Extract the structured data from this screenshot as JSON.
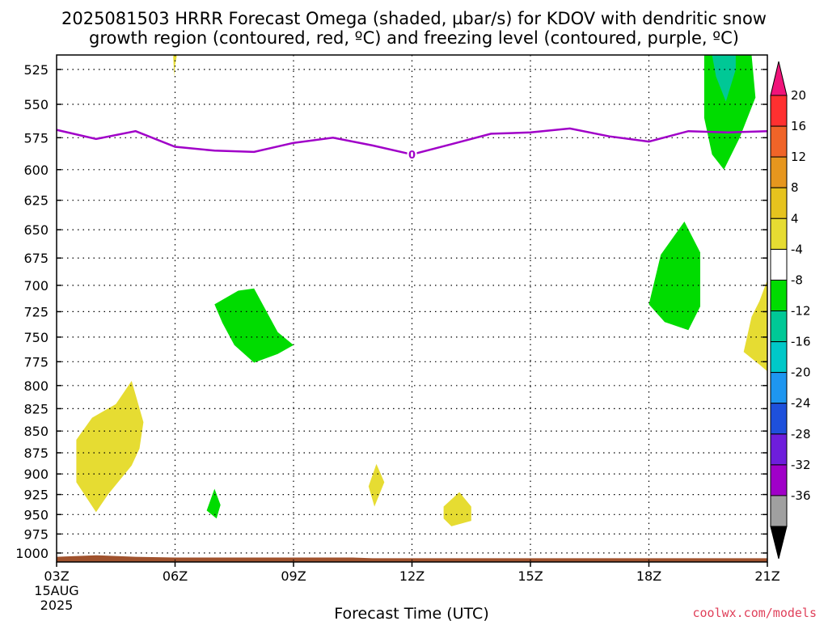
{
  "header": {
    "title_line1": "2025081503 HRRR Forecast Omega (shaded, µbar/s) for KDOV with dendritic snow",
    "title_line2": "growth region (contoured, red, ºC) and freezing level (contoured, purple, ºC)"
  },
  "footer": {
    "xlabel": "Forecast Time (UTC)",
    "credit": "coolwx.com/models"
  },
  "chart_data": {
    "type": "area",
    "title": "2025081503 HRRR Forecast Omega (shaded, µbar/s) for KDOV with dendritic snow growth region (contoured, red, ºC) and freezing level (contoured, purple, ºC)",
    "xlabel": "Forecast Time (UTC)",
    "ylabel": "",
    "x_ticks": [
      {
        "value": 3,
        "label": "03Z",
        "sub1": "15AUG",
        "sub2": "2025"
      },
      {
        "value": 6,
        "label": "06Z"
      },
      {
        "value": 9,
        "label": "09Z"
      },
      {
        "value": 12,
        "label": "12Z"
      },
      {
        "value": 15,
        "label": "15Z"
      },
      {
        "value": 18,
        "label": "18Z"
      },
      {
        "value": 21,
        "label": "21Z"
      }
    ],
    "xlim": [
      3,
      21
    ],
    "y_ticks": [
      525,
      550,
      575,
      600,
      625,
      650,
      675,
      700,
      725,
      750,
      775,
      800,
      825,
      850,
      875,
      900,
      925,
      950,
      975,
      1000
    ],
    "ylim": [
      515,
      1012
    ],
    "y_scale": "log-pressure",
    "grid": true,
    "freezing_level": {
      "label": "0",
      "color": "#a000c8",
      "points": [
        [
          3,
          569
        ],
        [
          4,
          576
        ],
        [
          5,
          570
        ],
        [
          6,
          582
        ],
        [
          7,
          585
        ],
        [
          8,
          586
        ],
        [
          9,
          579
        ],
        [
          10,
          575
        ],
        [
          11,
          581
        ],
        [
          12,
          588
        ],
        [
          13,
          580
        ],
        [
          14,
          572
        ],
        [
          15,
          571
        ],
        [
          16,
          568
        ],
        [
          17,
          574
        ],
        [
          18,
          578
        ],
        [
          19,
          570
        ],
        [
          20,
          571
        ],
        [
          21,
          570
        ]
      ]
    },
    "omega_regions": [
      {
        "value_range": "4 to 8",
        "color": "#e6dc32",
        "outline": [
          [
            4.0,
            947
          ],
          [
            3.5,
            910
          ],
          [
            3.5,
            860
          ],
          [
            3.9,
            835
          ],
          [
            4.5,
            820
          ],
          [
            4.9,
            795
          ],
          [
            5.2,
            840
          ],
          [
            5.1,
            870
          ],
          [
            4.9,
            890
          ],
          [
            4.3,
            925
          ]
        ]
      },
      {
        "value_range": "4 to 8",
        "color": "#e6dc32",
        "outline": [
          [
            6.0,
            522
          ],
          [
            6.05,
            512
          ],
          [
            5.95,
            512
          ],
          [
            5.98,
            530
          ]
        ]
      },
      {
        "value_range": "-8 to -4",
        "color": "#00dc00",
        "outline": [
          [
            7.0,
            718
          ],
          [
            7.6,
            705
          ],
          [
            8.0,
            703
          ],
          [
            8.6,
            745
          ],
          [
            9.0,
            758
          ],
          [
            8.6,
            767
          ],
          [
            8.0,
            776
          ],
          [
            7.5,
            758
          ],
          [
            7.2,
            736
          ]
        ]
      },
      {
        "value_range": "-8 to -4",
        "color": "#00dc00",
        "outline": [
          [
            6.8,
            945
          ],
          [
            7.0,
            918
          ],
          [
            7.15,
            938
          ],
          [
            7.05,
            955
          ]
        ]
      },
      {
        "value_range": "4 to 8",
        "color": "#e6dc32",
        "outline": [
          [
            10.9,
            915
          ],
          [
            11.1,
            888
          ],
          [
            11.3,
            910
          ],
          [
            11.05,
            940
          ]
        ]
      },
      {
        "value_range": "4 to 8",
        "color": "#e6dc32",
        "outline": [
          [
            12.8,
            940
          ],
          [
            13.2,
            922
          ],
          [
            13.5,
            940
          ],
          [
            13.5,
            958
          ],
          [
            13.0,
            965
          ],
          [
            12.8,
            955
          ]
        ]
      },
      {
        "value_range": "-8 to -4",
        "color": "#00dc00",
        "outline": [
          [
            18.0,
            718
          ],
          [
            18.3,
            672
          ],
          [
            18.9,
            643
          ],
          [
            19.3,
            670
          ],
          [
            19.3,
            720
          ],
          [
            19.0,
            743
          ],
          [
            18.4,
            735
          ]
        ]
      },
      {
        "value_range": "-8 to -4",
        "color": "#00dc00",
        "outline": [
          [
            19.4,
            515
          ],
          [
            20.6,
            515
          ],
          [
            20.7,
            545
          ],
          [
            20.3,
            575
          ],
          [
            19.9,
            600
          ],
          [
            19.6,
            588
          ],
          [
            19.4,
            560
          ]
        ]
      },
      {
        "value_range": "-12 to -8",
        "color": "#00c896",
        "outline": [
          [
            19.6,
            515
          ],
          [
            20.2,
            515
          ],
          [
            20.2,
            525
          ],
          [
            19.95,
            548
          ],
          [
            19.7,
            530
          ]
        ]
      },
      {
        "value_range": "4 to 8",
        "color": "#e6dc32",
        "outline": [
          [
            20.4,
            765
          ],
          [
            20.6,
            730
          ],
          [
            20.8,
            715
          ],
          [
            21.0,
            695
          ],
          [
            21.0,
            785
          ],
          [
            20.8,
            778
          ]
        ]
      }
    ],
    "surface": {
      "color": "#a0522d",
      "points": [
        [
          3,
          1005
        ],
        [
          4,
          1003
        ],
        [
          5,
          1005
        ],
        [
          6,
          1006
        ],
        [
          9,
          1006
        ],
        [
          10.5,
          1006
        ],
        [
          11,
          1007
        ],
        [
          14,
          1007
        ],
        [
          18,
          1007
        ],
        [
          21,
          1007
        ]
      ]
    },
    "colorbar": {
      "labels": [
        "20",
        "16",
        "12",
        "8",
        "4",
        "-4",
        "-8",
        "-12",
        "-16",
        "-20",
        "-24",
        "-28",
        "-32",
        "-36"
      ],
      "colors": [
        "#ff3030",
        "#f06428",
        "#e6961e",
        "#e6c31e",
        "#e6dc32",
        "#ffffff",
        "#00dc00",
        "#00c896",
        "#00c8c8",
        "#1e96f0",
        "#1e50dc",
        "#6e1edc",
        "#a000c8",
        "#a0a0a0"
      ],
      "top_arrow_color": "#f0147a",
      "bottom_arrow_color": "#000000"
    }
  }
}
